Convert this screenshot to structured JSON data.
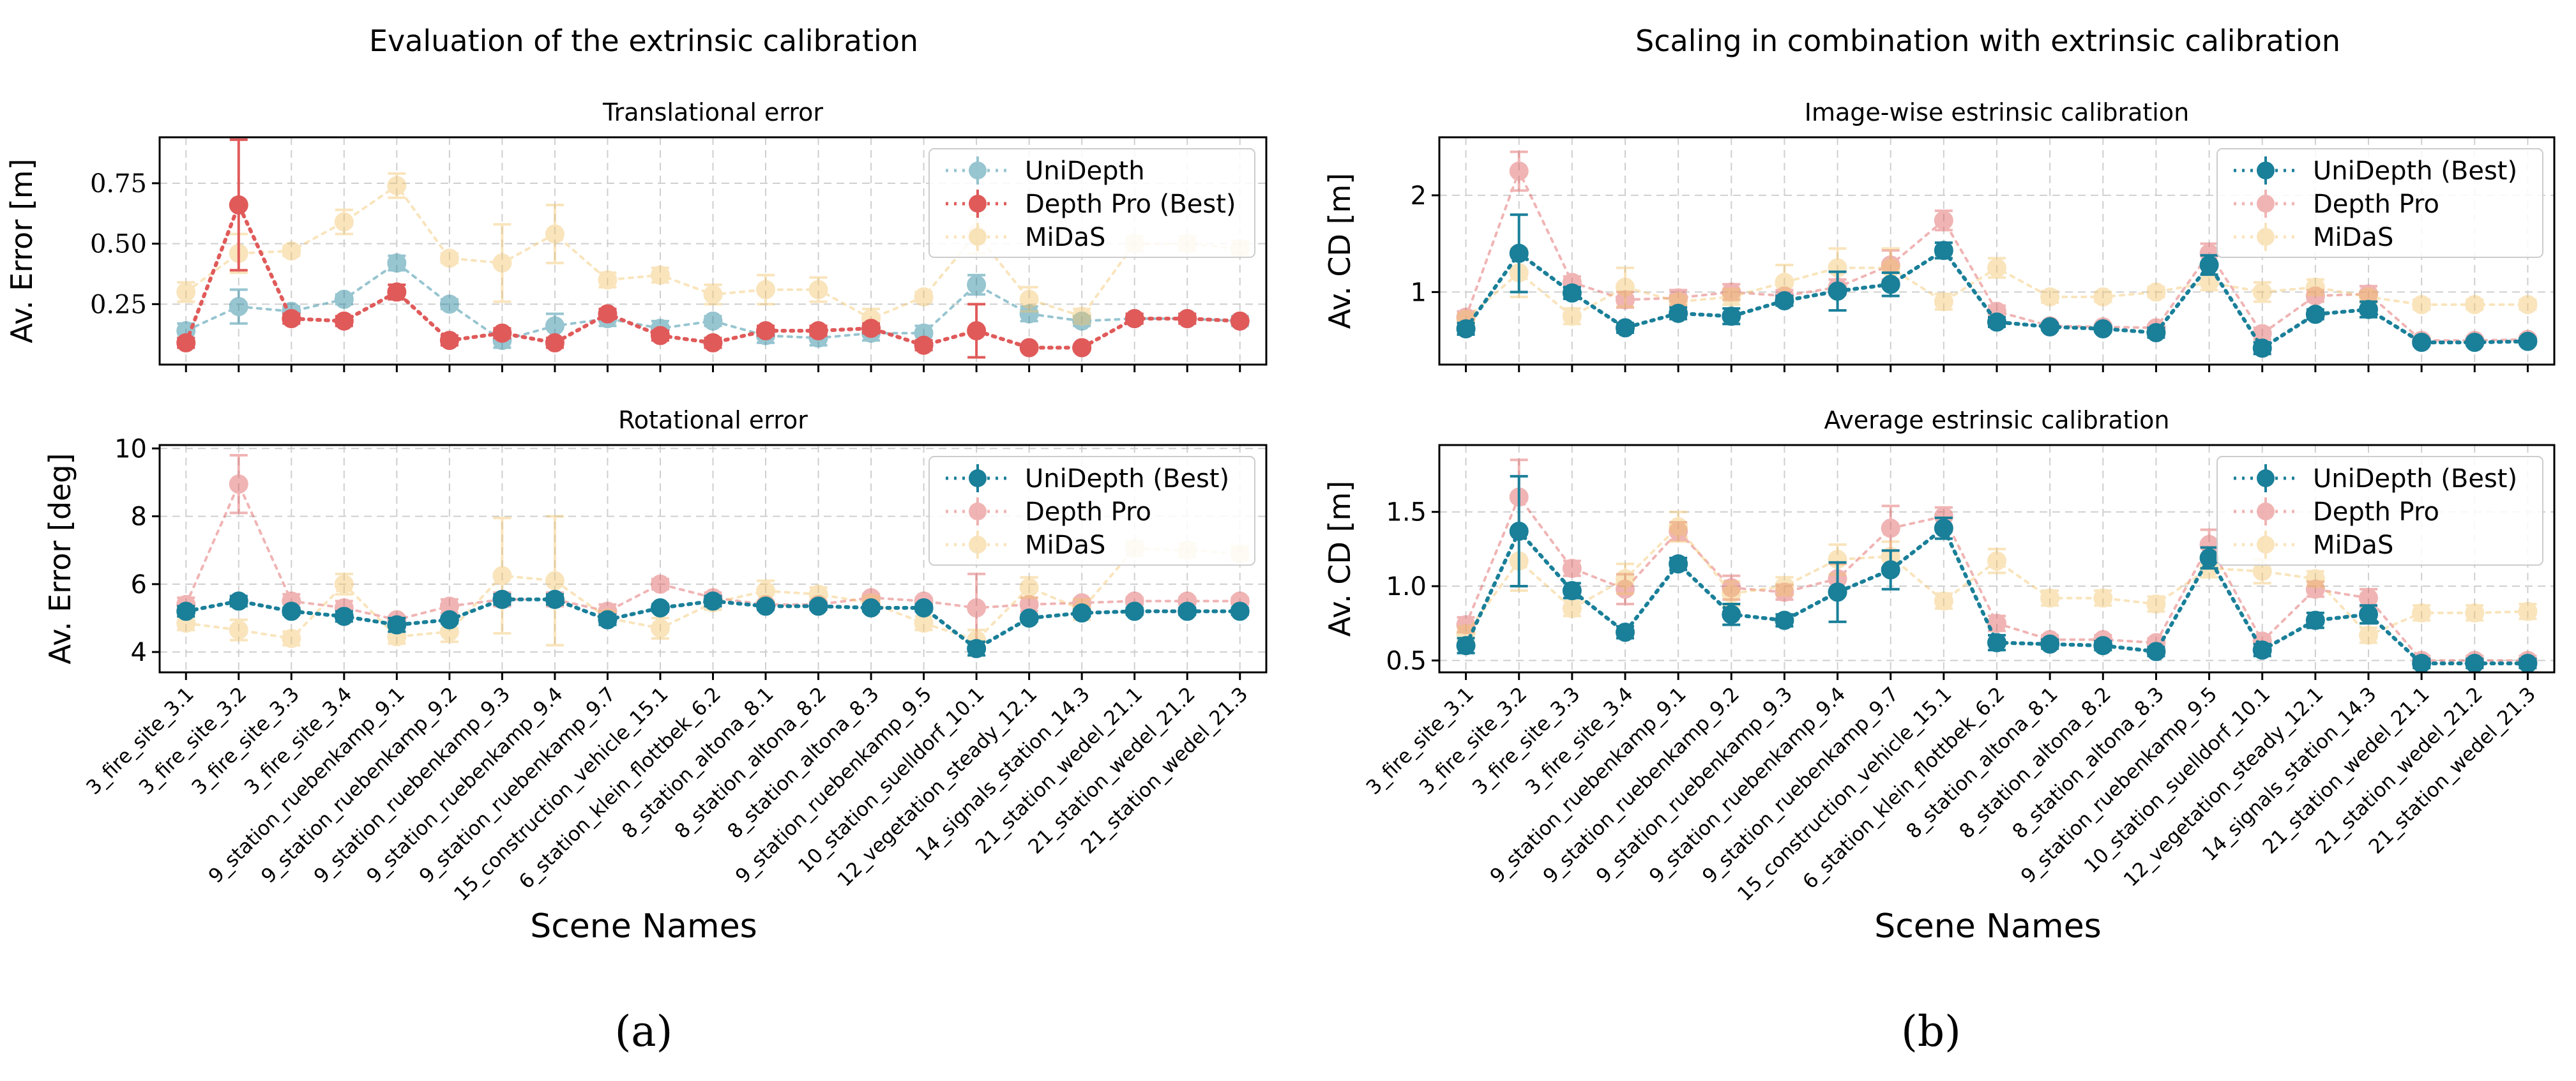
{
  "figure": {
    "left_title": "Evaluation of the extrinsic calibration",
    "right_title": "Scaling in combination with extrinsic calibration",
    "xlabel": "Scene Names",
    "label_a": "(a)",
    "label_b": "(b)"
  },
  "colors": {
    "unidepth": "#1a7f99",
    "depthpro": "#e05a5a",
    "midas": "#f2c46d",
    "grid": "#cfcfcf"
  },
  "categories": [
    "3_fire_site_3.1",
    "3_fire_site_3.2",
    "3_fire_site_3.3",
    "3_fire_site_3.4",
    "9_station_ruebenkamp_9.1",
    "9_station_ruebenkamp_9.2",
    "9_station_ruebenkamp_9.3",
    "9_station_ruebenkamp_9.4",
    "9_station_ruebenkamp_9.7",
    "15_construction_vehicle_15.1",
    "6_station_klein_flottbek_6.2",
    "8_station_altona_8.1",
    "8_station_altona_8.2",
    "8_station_altona_8.3",
    "9_station_ruebenkamp_9.5",
    "10_station_suelldorf_10.1",
    "12_vegetation_steady_12.1",
    "14_signals_station_14.3",
    "21_station_wedel_21.1",
    "21_station_wedel_21.2",
    "21_station_wedel_21.3"
  ],
  "chart_data": [
    {
      "id": "p1",
      "type": "line",
      "title": "Translational error",
      "ylabel": "Av. Error [m]",
      "ylim": [
        0.0,
        0.94
      ],
      "yticks": [
        0.25,
        0.5,
        0.75
      ],
      "ytick_labels": [
        "0.25",
        "0.50",
        "0.75"
      ],
      "yticks_serif": true,
      "show_xticklabels": false,
      "series": [
        {
          "key": "unidepth",
          "name": "UniDepth",
          "best": false,
          "values": [
            0.14,
            0.24,
            0.22,
            0.27,
            0.42,
            0.25,
            0.1,
            0.16,
            0.19,
            0.15,
            0.18,
            0.12,
            0.11,
            0.13,
            0.13,
            0.33,
            0.21,
            0.18,
            0.19,
            0.19,
            0.18
          ],
          "errors": [
            0.03,
            0.07,
            0.02,
            0.02,
            0.03,
            0.02,
            0.03,
            0.05,
            0.03,
            0.03,
            0.02,
            0.03,
            0.03,
            0.03,
            0.03,
            0.04,
            0.03,
            0.02,
            0.02,
            0.02,
            0.02
          ]
        },
        {
          "key": "depthpro",
          "name": "Depth Pro (Best)",
          "best": true,
          "values": [
            0.09,
            0.66,
            0.19,
            0.18,
            0.3,
            0.1,
            0.13,
            0.09,
            0.21,
            0.12,
            0.09,
            0.14,
            0.14,
            0.15,
            0.08,
            0.14,
            0.07,
            0.07,
            0.19,
            0.19,
            0.18
          ],
          "errors": [
            0.02,
            0.27,
            0.02,
            0.02,
            0.03,
            0.02,
            0.02,
            0.02,
            0.02,
            0.02,
            0.02,
            0.02,
            0.02,
            0.02,
            0.02,
            0.11,
            0.01,
            0.01,
            0.02,
            0.02,
            0.01
          ]
        },
        {
          "key": "midas",
          "name": "MiDaS",
          "best": false,
          "values": [
            0.3,
            0.46,
            0.47,
            0.59,
            0.74,
            0.44,
            0.42,
            0.54,
            0.35,
            0.37,
            0.29,
            0.31,
            0.31,
            0.19,
            0.28,
            0.54,
            0.27,
            0.2,
            0.5,
            0.5,
            0.48
          ],
          "errors": [
            0.04,
            0.08,
            0.02,
            0.05,
            0.05,
            0.02,
            0.16,
            0.12,
            0.03,
            0.03,
            0.04,
            0.06,
            0.05,
            0.04,
            0.02,
            0.08,
            0.05,
            0.03,
            0.03,
            0.03,
            0.03
          ]
        }
      ],
      "legend_order": [
        "unidepth",
        "depthpro",
        "midas"
      ]
    },
    {
      "id": "p2",
      "type": "line",
      "title": "Rotational error",
      "ylabel": "Av. Error [deg]",
      "ylim": [
        3.4,
        10.1
      ],
      "yticks": [
        4,
        6,
        8,
        10
      ],
      "ytick_labels": [
        "4",
        "6",
        "8",
        "10"
      ],
      "yticks_serif": false,
      "show_xticklabels": true,
      "series": [
        {
          "key": "unidepth",
          "name": "UniDepth (Best)",
          "best": true,
          "values": [
            5.2,
            5.5,
            5.2,
            5.05,
            4.8,
            4.95,
            5.55,
            5.55,
            4.95,
            5.3,
            5.5,
            5.35,
            5.35,
            5.3,
            5.3,
            4.1,
            5.0,
            5.15,
            5.2,
            5.2,
            5.2
          ],
          "errors": [
            0.15,
            0.15,
            0.1,
            0.15,
            0.2,
            0.1,
            0.15,
            0.15,
            0.15,
            0.1,
            0.15,
            0.1,
            0.1,
            0.1,
            0.1,
            0.2,
            0.1,
            0.1,
            0.1,
            0.1,
            0.1
          ]
        },
        {
          "key": "depthpro",
          "name": "Depth Pro",
          "best": false,
          "values": [
            5.4,
            8.95,
            5.5,
            5.3,
            4.95,
            5.35,
            5.55,
            5.55,
            5.2,
            6.0,
            5.6,
            5.4,
            5.4,
            5.6,
            5.5,
            5.3,
            5.4,
            5.45,
            5.5,
            5.5,
            5.5
          ],
          "errors": [
            0.2,
            0.85,
            0.2,
            0.2,
            0.1,
            0.2,
            0.2,
            0.2,
            0.2,
            0.15,
            0.15,
            0.1,
            0.1,
            0.1,
            0.1,
            1.0,
            0.2,
            0.1,
            0.1,
            0.1,
            0.1
          ]
        },
        {
          "key": "midas",
          "name": "MiDaS",
          "best": false,
          "values": [
            4.85,
            4.65,
            4.4,
            6.0,
            4.45,
            4.6,
            6.25,
            6.1,
            5.0,
            4.7,
            5.45,
            5.8,
            5.7,
            5.45,
            4.85,
            4.35,
            5.9,
            5.25,
            7.05,
            7.0,
            6.9
          ],
          "errors": [
            0.2,
            0.3,
            0.2,
            0.3,
            0.2,
            0.3,
            1.7,
            1.9,
            0.2,
            0.3,
            0.2,
            0.3,
            0.2,
            0.2,
            0.2,
            0.3,
            0.3,
            0.3,
            0.2,
            0.2,
            0.2
          ]
        }
      ],
      "legend_order": [
        "unidepth",
        "depthpro",
        "midas"
      ]
    },
    {
      "id": "p3",
      "type": "line",
      "title": "Image-wise estrinsic calibration",
      "ylabel": "Av. CD [m]",
      "ylim": [
        0.25,
        2.6
      ],
      "yticks": [
        1,
        2
      ],
      "ytick_labels": [
        "1",
        "2"
      ],
      "yticks_serif": false,
      "show_xticklabels": false,
      "series": [
        {
          "key": "unidepth",
          "name": "UniDepth (Best)",
          "best": true,
          "values": [
            0.62,
            1.4,
            0.99,
            0.63,
            0.78,
            0.75,
            0.91,
            1.01,
            1.08,
            1.43,
            0.69,
            0.64,
            0.62,
            0.58,
            1.28,
            0.42,
            0.77,
            0.82,
            0.48,
            0.48,
            0.49
          ],
          "errors": [
            0.06,
            0.4,
            0.06,
            0.05,
            0.06,
            0.08,
            0.05,
            0.2,
            0.12,
            0.08,
            0.05,
            0.03,
            0.03,
            0.05,
            0.1,
            0.06,
            0.05,
            0.08,
            0.03,
            0.03,
            0.03
          ]
        },
        {
          "key": "depthpro",
          "name": "Depth Pro",
          "best": false,
          "values": [
            0.74,
            2.25,
            1.1,
            0.92,
            0.94,
            1.0,
            0.96,
            1.05,
            1.28,
            1.74,
            0.8,
            0.65,
            0.64,
            0.63,
            1.4,
            0.57,
            0.96,
            0.98,
            0.5,
            0.5,
            0.51
          ],
          "errors": [
            0.06,
            0.2,
            0.06,
            0.08,
            0.08,
            0.08,
            0.06,
            0.08,
            0.15,
            0.1,
            0.06,
            0.03,
            0.03,
            0.03,
            0.1,
            0.06,
            0.06,
            0.08,
            0.03,
            0.03,
            0.03
          ]
        },
        {
          "key": "midas",
          "name": "MiDaS",
          "best": false,
          "values": [
            0.72,
            1.2,
            0.75,
            1.05,
            0.9,
            0.95,
            1.1,
            1.25,
            1.25,
            0.9,
            1.25,
            0.95,
            0.95,
            1.0,
            1.1,
            1.0,
            1.05,
            0.95,
            0.87,
            0.87,
            0.87
          ],
          "errors": [
            0.06,
            0.25,
            0.08,
            0.2,
            0.06,
            0.08,
            0.18,
            0.2,
            0.2,
            0.08,
            0.1,
            0.06,
            0.05,
            0.05,
            0.08,
            0.1,
            0.08,
            0.06,
            0.05,
            0.05,
            0.05
          ]
        }
      ],
      "legend_order": [
        "unidepth",
        "depthpro",
        "midas"
      ]
    },
    {
      "id": "p4",
      "type": "line",
      "title": "Average estrinsic calibration",
      "ylabel": "Av. CD [m]",
      "ylim": [
        0.42,
        1.95
      ],
      "yticks": [
        0.5,
        1.0,
        1.5
      ],
      "ytick_labels": [
        "0.5",
        "1.0",
        "1.5"
      ],
      "yticks_serif": false,
      "show_xticklabels": true,
      "series": [
        {
          "key": "unidepth",
          "name": "UniDepth (Best)",
          "best": true,
          "values": [
            0.6,
            1.37,
            0.97,
            0.69,
            1.15,
            0.81,
            0.77,
            0.96,
            1.11,
            1.39,
            0.62,
            0.61,
            0.6,
            0.56,
            1.19,
            0.57,
            0.77,
            0.81,
            0.48,
            0.48,
            0.48
          ],
          "errors": [
            0.05,
            0.37,
            0.05,
            0.04,
            0.04,
            0.07,
            0.04,
            0.2,
            0.13,
            0.07,
            0.05,
            0.03,
            0.03,
            0.03,
            0.07,
            0.04,
            0.05,
            0.06,
            0.03,
            0.03,
            0.03
          ]
        },
        {
          "key": "depthpro",
          "name": "Depth Pro",
          "best": false,
          "values": [
            0.74,
            1.6,
            1.12,
            0.98,
            1.37,
            0.99,
            0.96,
            1.05,
            1.39,
            1.47,
            0.75,
            0.64,
            0.64,
            0.62,
            1.28,
            0.63,
            0.98,
            0.92,
            0.5,
            0.5,
            0.5
          ],
          "errors": [
            0.05,
            0.25,
            0.05,
            0.1,
            0.06,
            0.08,
            0.05,
            0.1,
            0.15,
            0.06,
            0.05,
            0.03,
            0.03,
            0.03,
            0.1,
            0.03,
            0.05,
            0.06,
            0.03,
            0.03,
            0.03
          ]
        },
        {
          "key": "midas",
          "name": "MiDaS",
          "best": false,
          "values": [
            0.68,
            1.17,
            0.85,
            1.05,
            1.4,
            0.95,
            1.0,
            1.18,
            1.2,
            0.9,
            1.17,
            0.92,
            0.92,
            0.88,
            1.12,
            1.1,
            1.05,
            0.67,
            0.82,
            0.82,
            0.83
          ],
          "errors": [
            0.05,
            0.2,
            0.05,
            0.1,
            0.1,
            0.08,
            0.06,
            0.1,
            0.1,
            0.05,
            0.08,
            0.05,
            0.05,
            0.05,
            0.06,
            0.08,
            0.05,
            0.05,
            0.05,
            0.05,
            0.05
          ]
        }
      ],
      "legend_order": [
        "unidepth",
        "depthpro",
        "midas"
      ]
    }
  ]
}
